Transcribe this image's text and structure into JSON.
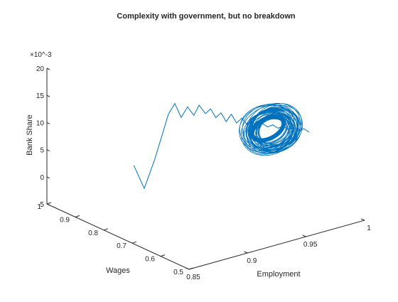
{
  "chart_data": {
    "type": "line",
    "projection": "3d",
    "title": "Complexity with government, but no breakdown",
    "xlabel": "Employment",
    "ylabel": "Wages",
    "zlabel": "Bank Share",
    "z_exponent_label": "×10^-3",
    "xlim": [
      0.85,
      1.0
    ],
    "ylim": [
      0.5,
      1.0
    ],
    "zlim": [
      -5,
      20
    ],
    "x_ticks": [
      "0.85",
      "0.9",
      "0.95",
      "1"
    ],
    "y_ticks": [
      "0.5",
      "0.6",
      "0.7",
      "0.8",
      "0.9",
      "1"
    ],
    "z_ticks": [
      "-5",
      "0",
      "5",
      "10",
      "15",
      "20"
    ],
    "line_color": "#0072BD",
    "grid": false,
    "series": [
      {
        "x": [
          0.9,
          0.904,
          0.908,
          0.915,
          0.918,
          0.921,
          0.924,
          0.927,
          0.929,
          0.932,
          0.934,
          0.936,
          0.938,
          0.94,
          0.942,
          0.944,
          0.946,
          0.948,
          0.95,
          0.952,
          0.954,
          0.956,
          0.958,
          0.96,
          0.962,
          0.964,
          0.966,
          0.968,
          0.97,
          0.972
        ],
        "y": [
          0.9,
          0.88,
          0.86,
          0.84,
          0.83,
          0.82,
          0.81,
          0.8,
          0.79,
          0.78,
          0.77,
          0.76,
          0.75,
          0.74,
          0.73,
          0.72,
          0.71,
          0.7,
          0.69,
          0.68,
          0.67,
          0.66,
          0.65,
          0.64,
          0.63,
          0.62,
          0.61,
          0.6,
          0.59,
          0.58
        ],
        "z": [
          1.5,
          -2.5,
          3.0,
          11.5,
          13.5,
          11.0,
          13.0,
          11.5,
          13.5,
          12.0,
          13.0,
          11.5,
          12.5,
          11.0,
          12.5,
          11.0,
          12.0,
          11.0,
          11.5,
          11.0,
          11.5,
          11.0,
          11.5,
          11.0,
          11.5,
          11.0,
          11.5,
          11.0,
          11.5,
          11.0
        ]
      }
    ]
  }
}
